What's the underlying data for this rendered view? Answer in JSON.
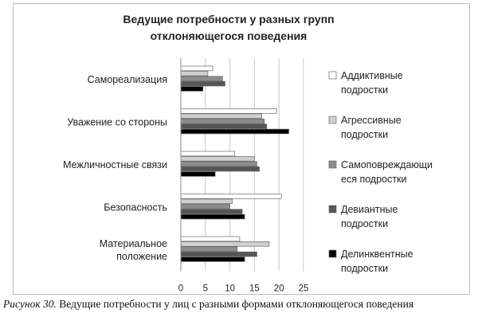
{
  "caption": {
    "lead": "Рисунок 30.",
    "text": "Ведущие потребности у лиц с разными формами отклоняющегося поведения"
  },
  "chart_data": {
    "type": "bar",
    "orientation": "horizontal",
    "title_lines": [
      "Ведущие потребности  у разных групп",
      "отклоняющегося поведения"
    ],
    "categories": [
      {
        "label_lines": [
          "Самореализация"
        ]
      },
      {
        "label_lines": [
          "Уважение со стороны"
        ]
      },
      {
        "label_lines": [
          "Межличностные связи"
        ]
      },
      {
        "label_lines": [
          "Безопасность"
        ]
      },
      {
        "label_lines": [
          "Материальное",
          "положение"
        ]
      }
    ],
    "series": [
      {
        "name_lines": [
          "Аддиктивные",
          "подростки"
        ],
        "color": "#ffffff",
        "values": [
          6.5,
          19.5,
          11,
          20.5,
          12
        ]
      },
      {
        "name_lines": [
          "Агрессивные",
          "подростки"
        ],
        "color": "#cfcfcf",
        "values": [
          5.5,
          16.5,
          15,
          10.5,
          18
        ]
      },
      {
        "name_lines": [
          "Самоповреждающи",
          "еся подростки"
        ],
        "color": "#8c8c8c",
        "values": [
          8.5,
          17,
          15.5,
          10,
          11.5
        ]
      },
      {
        "name_lines": [
          "Девиантные",
          "подростки"
        ],
        "color": "#555555",
        "values": [
          9,
          17.5,
          16,
          12.5,
          15.5
        ]
      },
      {
        "name_lines": [
          "Делинквентные",
          "подростки"
        ],
        "color": "#000000",
        "values": [
          4.5,
          22,
          7,
          13,
          13
        ]
      }
    ],
    "x_ticks": [
      "0",
      "5",
      "10",
      "15",
      "20",
      "25"
    ],
    "xlim": [
      0,
      25
    ],
    "grid": true,
    "legend_position": "right"
  }
}
